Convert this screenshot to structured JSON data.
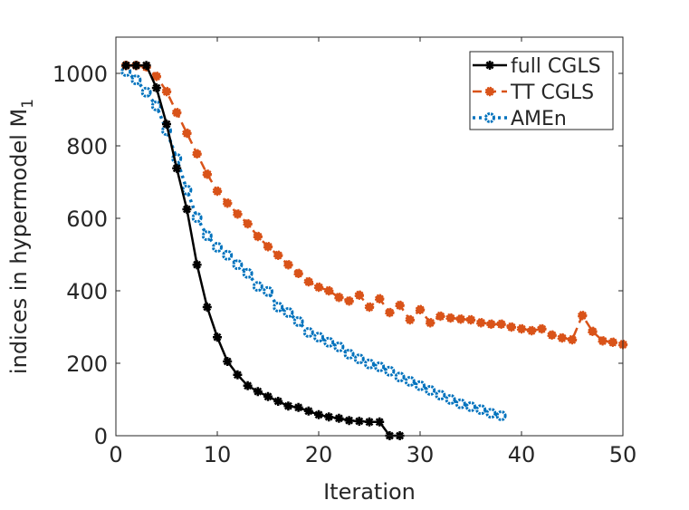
{
  "chart_data": {
    "type": "line",
    "title": "",
    "xlabel": "Iteration",
    "ylabel": "indices in hypermodel M",
    "ylabel_subscript": "1",
    "xlim": [
      0,
      50
    ],
    "ylim": [
      0,
      1100
    ],
    "xticks": [
      0,
      10,
      20,
      30,
      40,
      50
    ],
    "yticks": [
      0,
      200,
      400,
      600,
      800,
      1000
    ],
    "grid": false,
    "legend_position": "top-right",
    "series": [
      {
        "name": "full CGLS",
        "color": "#000000",
        "style": "solid",
        "marker": "asterisk",
        "x": [
          1,
          2,
          3,
          4,
          5,
          6,
          7,
          8,
          9,
          10,
          11,
          12,
          13,
          14,
          15,
          16,
          17,
          18,
          19,
          20,
          21,
          22,
          23,
          24,
          25,
          26,
          27,
          28
        ],
        "y": [
          1022,
          1022,
          1022,
          960,
          860,
          738,
          625,
          472,
          355,
          272,
          205,
          168,
          138,
          122,
          108,
          95,
          82,
          78,
          68,
          58,
          52,
          48,
          42,
          40,
          38,
          38,
          0,
          0
        ]
      },
      {
        "name": "TT CGLS",
        "color": "#D95319",
        "style": "dashed",
        "marker": "dot",
        "x": [
          1,
          2,
          3,
          4,
          5,
          6,
          7,
          8,
          9,
          10,
          11,
          12,
          13,
          14,
          15,
          16,
          17,
          18,
          19,
          20,
          21,
          22,
          23,
          24,
          25,
          26,
          27,
          28,
          29,
          30,
          31,
          32,
          33,
          34,
          35,
          36,
          37,
          38,
          39,
          40,
          41,
          42,
          43,
          44,
          45,
          46,
          47,
          48,
          49,
          50
        ],
        "y": [
          1022,
          1022,
          1018,
          992,
          950,
          892,
          835,
          778,
          722,
          675,
          642,
          612,
          585,
          550,
          522,
          498,
          472,
          448,
          425,
          410,
          400,
          382,
          372,
          388,
          355,
          378,
          340,
          360,
          320,
          348,
          312,
          330,
          325,
          322,
          320,
          312,
          308,
          308,
          300,
          295,
          290,
          295,
          278,
          270,
          265,
          332,
          288,
          262,
          258,
          252
        ]
      },
      {
        "name": "AMEn",
        "color": "#0072BD",
        "style": "dotted",
        "marker": "circle",
        "x": [
          1,
          2,
          3,
          4,
          5,
          6,
          7,
          8,
          9,
          10,
          11,
          12,
          13,
          14,
          15,
          16,
          17,
          18,
          19,
          20,
          21,
          22,
          23,
          24,
          25,
          26,
          27,
          28,
          29,
          30,
          31,
          32,
          33,
          34,
          35,
          36,
          37,
          38
        ],
        "y": [
          1005,
          982,
          948,
          910,
          842,
          765,
          678,
          602,
          552,
          520,
          498,
          472,
          448,
          412,
          398,
          355,
          340,
          315,
          285,
          272,
          258,
          245,
          225,
          212,
          198,
          190,
          178,
          162,
          150,
          138,
          125,
          112,
          100,
          88,
          80,
          72,
          62,
          55
        ]
      }
    ]
  }
}
